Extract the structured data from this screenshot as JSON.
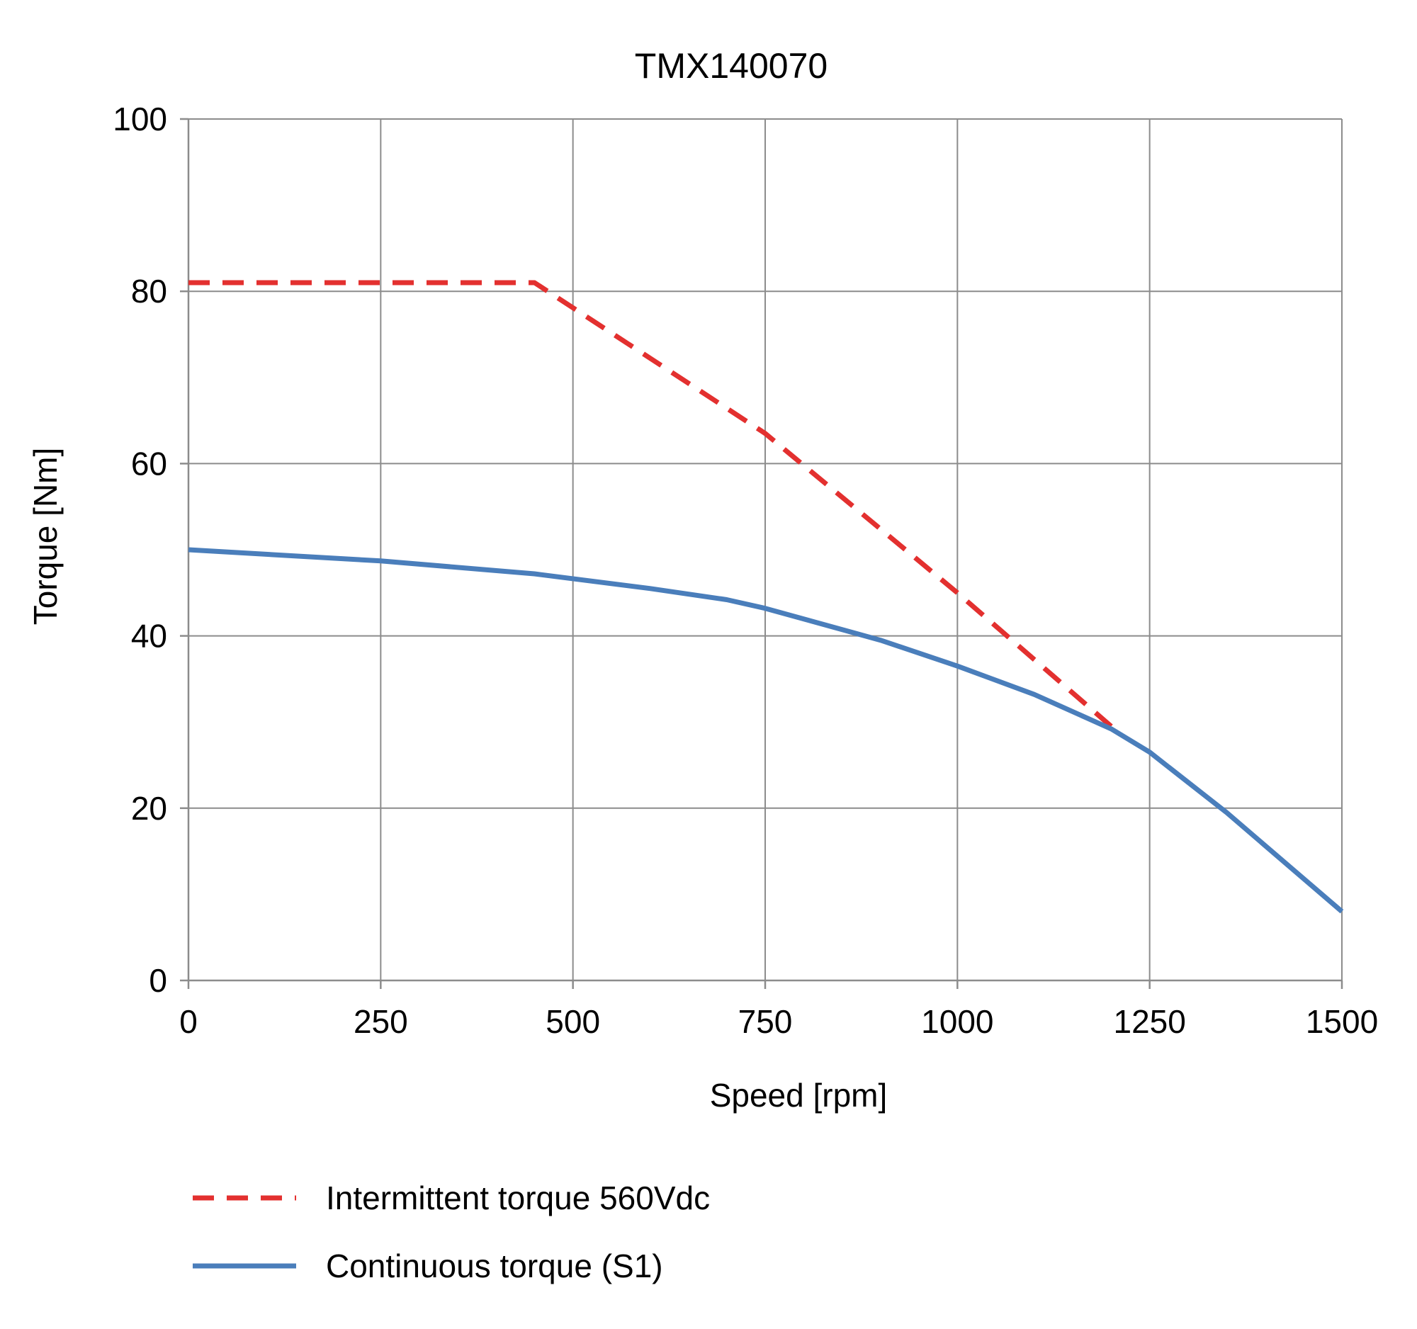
{
  "chart_data": {
    "type": "line",
    "title": "TMX140070",
    "xlabel": "Speed [rpm]",
    "ylabel": "Torque [Nm]",
    "xlim": [
      0,
      1500
    ],
    "ylim": [
      0,
      100
    ],
    "xticks": [
      "0",
      "250",
      "500",
      "750",
      "1000",
      "1250",
      "1500"
    ],
    "yticks": [
      "0",
      "20",
      "40",
      "60",
      "80",
      "100"
    ],
    "grid": true,
    "legend_position": "bottom",
    "series": [
      {
        "name": "Intermittent torque 560Vdc",
        "color": "#e3302f",
        "style": "dashed",
        "x": [
          0,
          450,
          750,
          1000,
          1200
        ],
        "y": [
          81,
          81,
          63.5,
          45,
          29.5
        ]
      },
      {
        "name": "Continuous torque (S1)",
        "color": "#4a7ebb",
        "style": "solid",
        "x": [
          0,
          250,
          450,
          600,
          700,
          750,
          900,
          1000,
          1100,
          1200,
          1250,
          1350,
          1500
        ],
        "y": [
          50,
          48.7,
          47.2,
          45.5,
          44.2,
          43.2,
          39.5,
          36.5,
          33.2,
          29.2,
          26.5,
          19.5,
          8
        ]
      }
    ]
  }
}
